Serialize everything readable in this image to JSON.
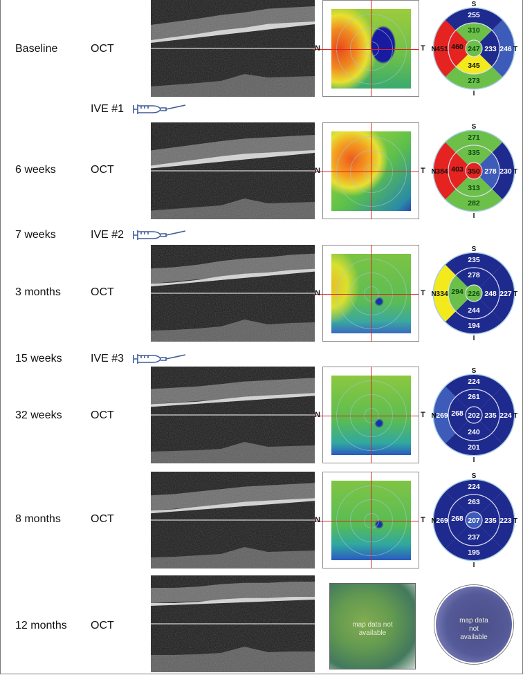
{
  "rows": [
    {
      "time": "Baseline",
      "modality": "OCT",
      "map_labels": {
        "N": "N",
        "T": "T"
      },
      "etdrs": {
        "S": "S",
        "I": "I",
        "N": "N",
        "T": "T",
        "center": {
          "v": "247",
          "c": "#6cc04a"
        },
        "inner": {
          "S": {
            "v": "310",
            "c": "#6cc04a"
          },
          "T": {
            "v": "233",
            "c": "#1f2a8f"
          },
          "I": {
            "v": "345",
            "c": "#f3ea1e"
          },
          "N": {
            "v": "460",
            "c": "#e52421"
          }
        },
        "outer": {
          "S": {
            "v": "255",
            "c": "#1f2a8f"
          },
          "T": {
            "v": "246",
            "c": "#3d5bb8"
          },
          "I": {
            "v": "273",
            "c": "#6cc04a"
          },
          "N": {
            "v": "451",
            "c": "#e52421"
          }
        }
      }
    },
    {
      "time": "6 weeks",
      "modality": "OCT",
      "map_labels": {
        "N": "N",
        "T": "T"
      },
      "etdrs": {
        "S": "S",
        "I": "I",
        "N": "N",
        "T": "T",
        "center": {
          "v": "350",
          "c": "#e52421"
        },
        "inner": {
          "S": {
            "v": "335",
            "c": "#6cc04a"
          },
          "T": {
            "v": "278",
            "c": "#3d5bb8"
          },
          "I": {
            "v": "313",
            "c": "#6cc04a"
          },
          "N": {
            "v": "403",
            "c": "#e52421"
          }
        },
        "outer": {
          "S": {
            "v": "271",
            "c": "#6cc04a"
          },
          "T": {
            "v": "230",
            "c": "#1f2a8f"
          },
          "I": {
            "v": "282",
            "c": "#6cc04a"
          },
          "N": {
            "v": "384",
            "c": "#e52421"
          }
        }
      }
    },
    {
      "time": "3 months",
      "modality": "OCT",
      "map_labels": {
        "N": "N",
        "T": "T"
      },
      "etdrs": {
        "S": "S",
        "I": "I",
        "N": "N",
        "T": "T",
        "center": {
          "v": "226",
          "c": "#6cc04a"
        },
        "inner": {
          "S": {
            "v": "278",
            "c": "#1f2a8f"
          },
          "T": {
            "v": "248",
            "c": "#1f2a8f"
          },
          "I": {
            "v": "244",
            "c": "#1f2a8f"
          },
          "N": {
            "v": "294",
            "c": "#6cc04a"
          }
        },
        "outer": {
          "S": {
            "v": "235",
            "c": "#1f2a8f"
          },
          "T": {
            "v": "227",
            "c": "#1f2a8f"
          },
          "I": {
            "v": "194",
            "c": "#1f2a8f"
          },
          "N": {
            "v": "334",
            "c": "#f3ea1e"
          }
        }
      }
    },
    {
      "time": "32 weeks",
      "modality": "OCT",
      "map_labels": {
        "N": "N",
        "T": "T"
      },
      "etdrs": {
        "S": "S",
        "I": "I",
        "N": "N",
        "T": "T",
        "center": {
          "v": "202",
          "c": "#1f2a8f"
        },
        "inner": {
          "S": {
            "v": "261",
            "c": "#1f2a8f"
          },
          "T": {
            "v": "235",
            "c": "#1f2a8f"
          },
          "I": {
            "v": "240",
            "c": "#1f2a8f"
          },
          "N": {
            "v": "268",
            "c": "#1f2a8f"
          }
        },
        "outer": {
          "S": {
            "v": "224",
            "c": "#1f2a8f"
          },
          "T": {
            "v": "224",
            "c": "#1f2a8f"
          },
          "I": {
            "v": "201",
            "c": "#1f2a8f"
          },
          "N": {
            "v": "269",
            "c": "#3d5bb8"
          }
        }
      }
    },
    {
      "time": "8 months",
      "modality": "OCT",
      "map_labels": {
        "N": "N",
        "T": "T"
      },
      "etdrs": {
        "S": "S",
        "I": "I",
        "N": "N",
        "T": "T",
        "center": {
          "v": "207",
          "c": "#3d5bb8"
        },
        "inner": {
          "S": {
            "v": "263",
            "c": "#1f2a8f"
          },
          "T": {
            "v": "235",
            "c": "#1f2a8f"
          },
          "I": {
            "v": "237",
            "c": "#1f2a8f"
          },
          "N": {
            "v": "268",
            "c": "#1f2a8f"
          }
        },
        "outer": {
          "S": {
            "v": "224",
            "c": "#1f2a8f"
          },
          "T": {
            "v": "223",
            "c": "#1f2a8f"
          },
          "I": {
            "v": "195",
            "c": "#1f2a8f"
          },
          "N": {
            "v": "269",
            "c": "#1f2a8f"
          }
        }
      }
    },
    {
      "time": "12 months",
      "modality": "OCT",
      "map_unavailable": "map data not available",
      "etdrs_unavailable": "map data not available"
    }
  ],
  "injections": [
    {
      "time": "",
      "label": "IVE #1",
      "icon": "syringe-icon"
    },
    {
      "time": "7 weeks",
      "label": "IVE #2",
      "icon": "syringe-icon"
    },
    {
      "time": "15 weeks",
      "label": "IVE #3",
      "icon": "syringe-icon"
    }
  ],
  "colors": {
    "red": "#e52421",
    "green": "#6cc04a",
    "yellow": "#f3ea1e",
    "dark_blue": "#1f2a8f",
    "mid_blue": "#3d5bb8",
    "crosshair": "#e02020",
    "syringe": "#3f5b9a"
  }
}
